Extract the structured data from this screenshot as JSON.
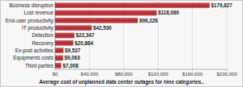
{
  "chart_data": {
    "type": "bar",
    "orientation": "horizontal",
    "title": "Average cost of unplanned data center outages for nine categories..",
    "categories": [
      "Business disruption",
      "Lost revenue",
      "End-user productivity",
      "IT productivity",
      "Detection",
      "Recovery",
      "Ex-post activities",
      "Equipments costs",
      "Third parties"
    ],
    "values": [
      179827,
      118080,
      96226,
      42530,
      22347,
      20884,
      9537,
      9063,
      7008
    ],
    "value_labels": [
      "$179,827",
      "$118,080",
      "$96,226",
      "$42,530",
      "$22,347",
      "$20,884",
      "$9,537",
      "$9,063",
      "$7,008"
    ],
    "color": "#b3272d",
    "xlim": [
      0,
      200000
    ],
    "xticks": [
      {
        "value": 0,
        "label": "$0"
      },
      {
        "value": 40000,
        "label": "$40,000"
      },
      {
        "value": 80000,
        "label": "$80,000"
      },
      {
        "value": 120000,
        "label": "$120,000"
      },
      {
        "value": 160000,
        "label": "$160,000"
      },
      {
        "value": 200000,
        "label": "$200,000"
      }
    ],
    "grid": true,
    "data_labels": true
  }
}
